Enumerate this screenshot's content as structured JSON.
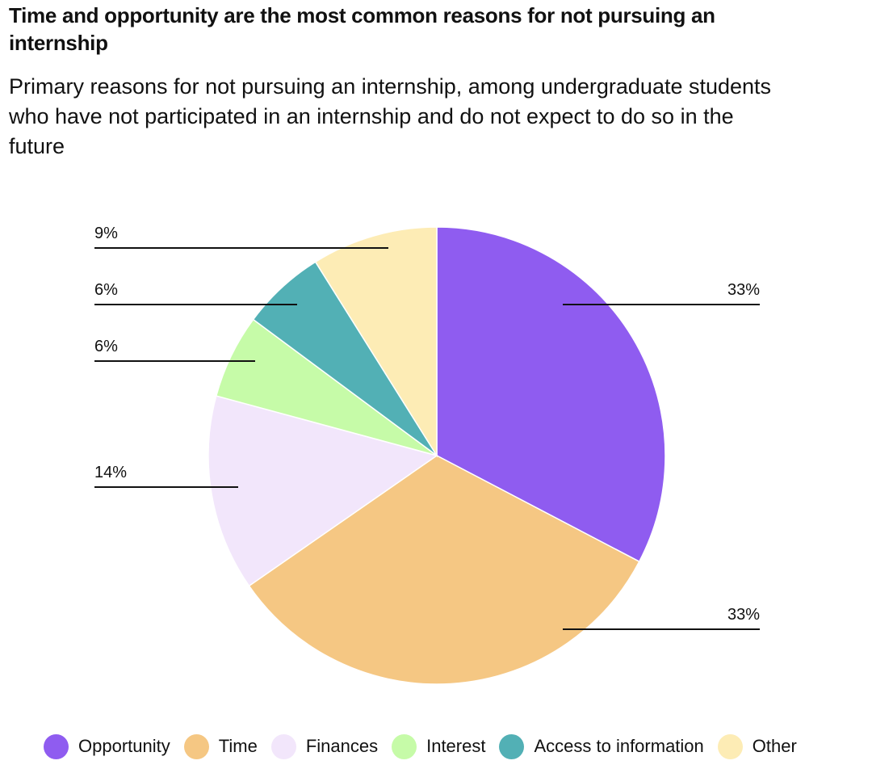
{
  "header": {
    "title": "Time and opportunity are the most common reasons for not pursuing an internship",
    "subtitle": "Primary reasons for not pursuing an internship, among undergraduate students who have not participated in an internship and do not expect to do so in the future"
  },
  "chart_data": {
    "type": "pie",
    "categories": [
      "Opportunity",
      "Time",
      "Finances",
      "Interest",
      "Access to information",
      "Other"
    ],
    "values": [
      33,
      33,
      14,
      6,
      6,
      9
    ],
    "value_labels": [
      "33%",
      "33%",
      "14%",
      "6%",
      "6%",
      "9%"
    ],
    "colors": [
      "#8f5cf0",
      "#f5c783",
      "#f2e6fb",
      "#c6fba8",
      "#52b0b5",
      "#fdecb5"
    ],
    "start": "12 o'clock, clockwise",
    "legend_position": "bottom",
    "grid": false
  }
}
